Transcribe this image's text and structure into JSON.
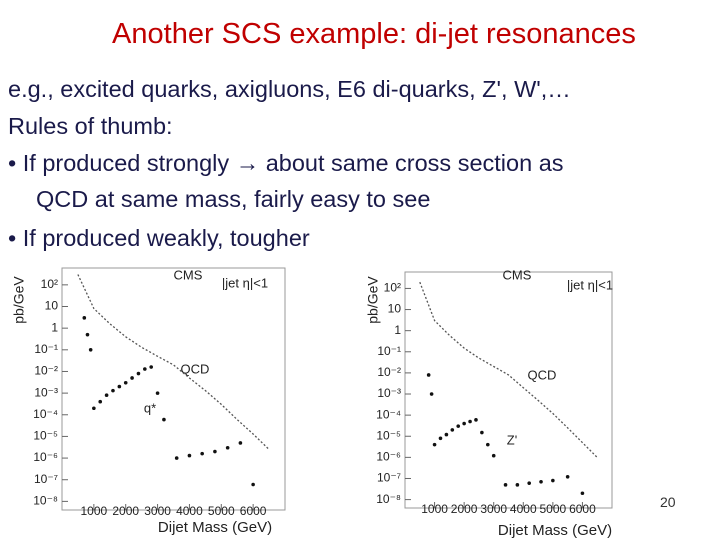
{
  "title": "Another SCS example: di-jet resonances",
  "lines": [
    "e.g., excited quarks, axigluons, E6 di-quarks, Z', W',…",
    "Rules of thumb:",
    "•  If produced strongly → about same cross section as",
    "QCD at same mass, fairly easy to see",
    "•  If produced weakly,  tougher"
  ],
  "page_number": "20",
  "chart_data": [
    {
      "type": "scatter",
      "ylabel": "pb/GeV",
      "xlabel": "Dijet Mass (GeV)",
      "annotations": [
        "CMS",
        "|jet η|<1"
      ],
      "log_y": true,
      "xlim": [
        0,
        7000
      ],
      "xticks": [
        1000,
        2000,
        3000,
        4000,
        5000,
        6000
      ],
      "ylim": [
        4e-09,
        600
      ],
      "yticks": [
        {
          "value": 100,
          "label": "10²"
        },
        10,
        1,
        {
          "value": 0.1,
          "label": "10⁻¹"
        },
        {
          "value": 0.01,
          "label": "10⁻²"
        },
        {
          "value": 0.001,
          "label": "10⁻³"
        },
        {
          "value": 0.0001,
          "label": "10⁻⁴"
        },
        {
          "value": 1e-05,
          "label": "10⁻⁵"
        },
        {
          "value": 1e-06,
          "label": "10⁻⁶"
        },
        {
          "value": 1e-07,
          "label": "10⁻⁷"
        },
        {
          "value": 1e-08,
          "label": "10⁻⁸"
        }
      ],
      "series": [
        {
          "name": "QCD",
          "style": "line",
          "color": "#555555",
          "x": [
            500,
            1000,
            1500,
            2000,
            2500,
            3000,
            3500,
            4000,
            4500,
            5000,
            5500,
            6000,
            6500
          ],
          "values": [
            300,
            8,
            1.6,
            0.4,
            0.13,
            0.05,
            0.02,
            0.005,
            0.0013,
            0.0003,
            6e-05,
            1.3e-05,
            2.5e-06
          ]
        },
        {
          "name": "q*",
          "style": "points",
          "color": "#111111",
          "x": [
            700,
            800,
            900,
            1000,
            1200,
            1400,
            1600,
            1800,
            2000,
            2200,
            2400,
            2600,
            2800,
            3000,
            3200,
            3600,
            4000,
            4400,
            4800,
            5200,
            5600,
            6000
          ],
          "values": [
            3,
            0.5,
            0.1,
            0.0002,
            0.0004,
            0.0008,
            0.0013,
            0.002,
            0.003,
            0.005,
            0.008,
            0.013,
            0.016,
            0.001,
            6e-05,
            1e-06,
            1.3e-06,
            1.6e-06,
            2e-06,
            3e-06,
            5e-06,
            6e-08
          ]
        }
      ]
    },
    {
      "type": "scatter",
      "ylabel": "pb/GeV",
      "xlabel": "Dijet Mass (GeV)",
      "annotations": [
        "CMS",
        "|jet η|<1"
      ],
      "log_y": true,
      "xlim": [
        0,
        7000
      ],
      "xticks": [
        1000,
        2000,
        3000,
        4000,
        5000,
        6000
      ],
      "ylim": [
        4e-09,
        600
      ],
      "yticks": [
        {
          "value": 100,
          "label": "10²"
        },
        10,
        1,
        {
          "value": 0.1,
          "label": "10⁻¹"
        },
        {
          "value": 0.01,
          "label": "10⁻²"
        },
        {
          "value": 0.001,
          "label": "10⁻³"
        },
        {
          "value": 0.0001,
          "label": "10⁻⁴"
        },
        {
          "value": 1e-05,
          "label": "10⁻⁵"
        },
        {
          "value": 1e-06,
          "label": "10⁻⁶"
        },
        {
          "value": 1e-07,
          "label": "10⁻⁷"
        },
        {
          "value": 1e-08,
          "label": "10⁻⁸"
        }
      ],
      "series": [
        {
          "name": "QCD",
          "style": "line",
          "color": "#555555",
          "x": [
            500,
            1000,
            1500,
            2000,
            2500,
            3000,
            3500,
            4000,
            4500,
            5000,
            5500,
            6000,
            6500
          ],
          "values": [
            200,
            3,
            0.6,
            0.15,
            0.05,
            0.02,
            0.008,
            0.002,
            0.0005,
            0.00012,
            2.5e-05,
            5e-06,
            1e-06
          ]
        },
        {
          "name": "Z'",
          "style": "points",
          "color": "#111111",
          "x": [
            800,
            900,
            1000,
            1200,
            1400,
            1600,
            1800,
            2000,
            2200,
            2400,
            2600,
            2800,
            3000,
            3400,
            3800,
            4200,
            4600,
            5000,
            5500,
            6000
          ],
          "values": [
            0.008,
            0.001,
            4e-06,
            8e-06,
            1.2e-05,
            2e-05,
            3e-05,
            4e-05,
            5e-05,
            6e-05,
            1.5e-05,
            4e-06,
            1.2e-06,
            5e-08,
            5e-08,
            6e-08,
            7e-08,
            8e-08,
            1.2e-07,
            2e-08
          ]
        }
      ]
    }
  ]
}
